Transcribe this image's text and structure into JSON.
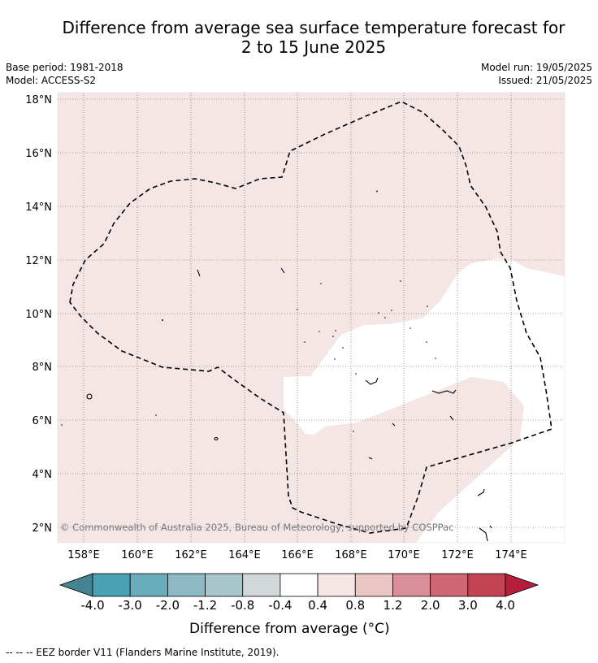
{
  "title_line1": "Difference from average sea surface temperature forecast for",
  "title_line2": "2 to 15 June 2025",
  "base_period": "Base period: 1981-2018",
  "model": "Model: ACCESS-S2",
  "model_run": "Model run: 19/05/2025",
  "issued": "Issued: 21/05/2025",
  "copyright": "© Commonwealth of Australia 2025, Bureau of Meteorology; supported by COSPPac",
  "lon_labels": [
    "158°E",
    "160°E",
    "162°E",
    "164°E",
    "166°E",
    "168°E",
    "170°E",
    "172°E",
    "174°E"
  ],
  "lat_labels": [
    "2°N",
    "4°N",
    "6°N",
    "8°N",
    "10°N",
    "12°N",
    "14°N",
    "16°N",
    "18°N"
  ],
  "colorbar": {
    "title": "Difference from average (°C)",
    "tick_labels": [
      "-4.0",
      "-3.0",
      "-2.0",
      "-1.2",
      "-0.8",
      "-0.4",
      "0.4",
      "0.8",
      "1.2",
      "2.0",
      "3.0",
      "4.0"
    ],
    "colors": [
      "#458390",
      "#4aa1b4",
      "#6aadbd",
      "#8db9c5",
      "#a7c5ca",
      "#d1d6d8",
      "#ffffff",
      "#f4e6e5",
      "#e9c6c3",
      "#d98f98",
      "#cd6872",
      "#c24354",
      "#b51f3b"
    ]
  },
  "footer": "--  --  -- EEZ border V11 (Flanders Marine Institute, 2019).",
  "map_fill_colors": {
    "anomaly_0_4_to_0_8": "#f4e6e5",
    "anomaly_neutral": "#ffffff"
  }
}
